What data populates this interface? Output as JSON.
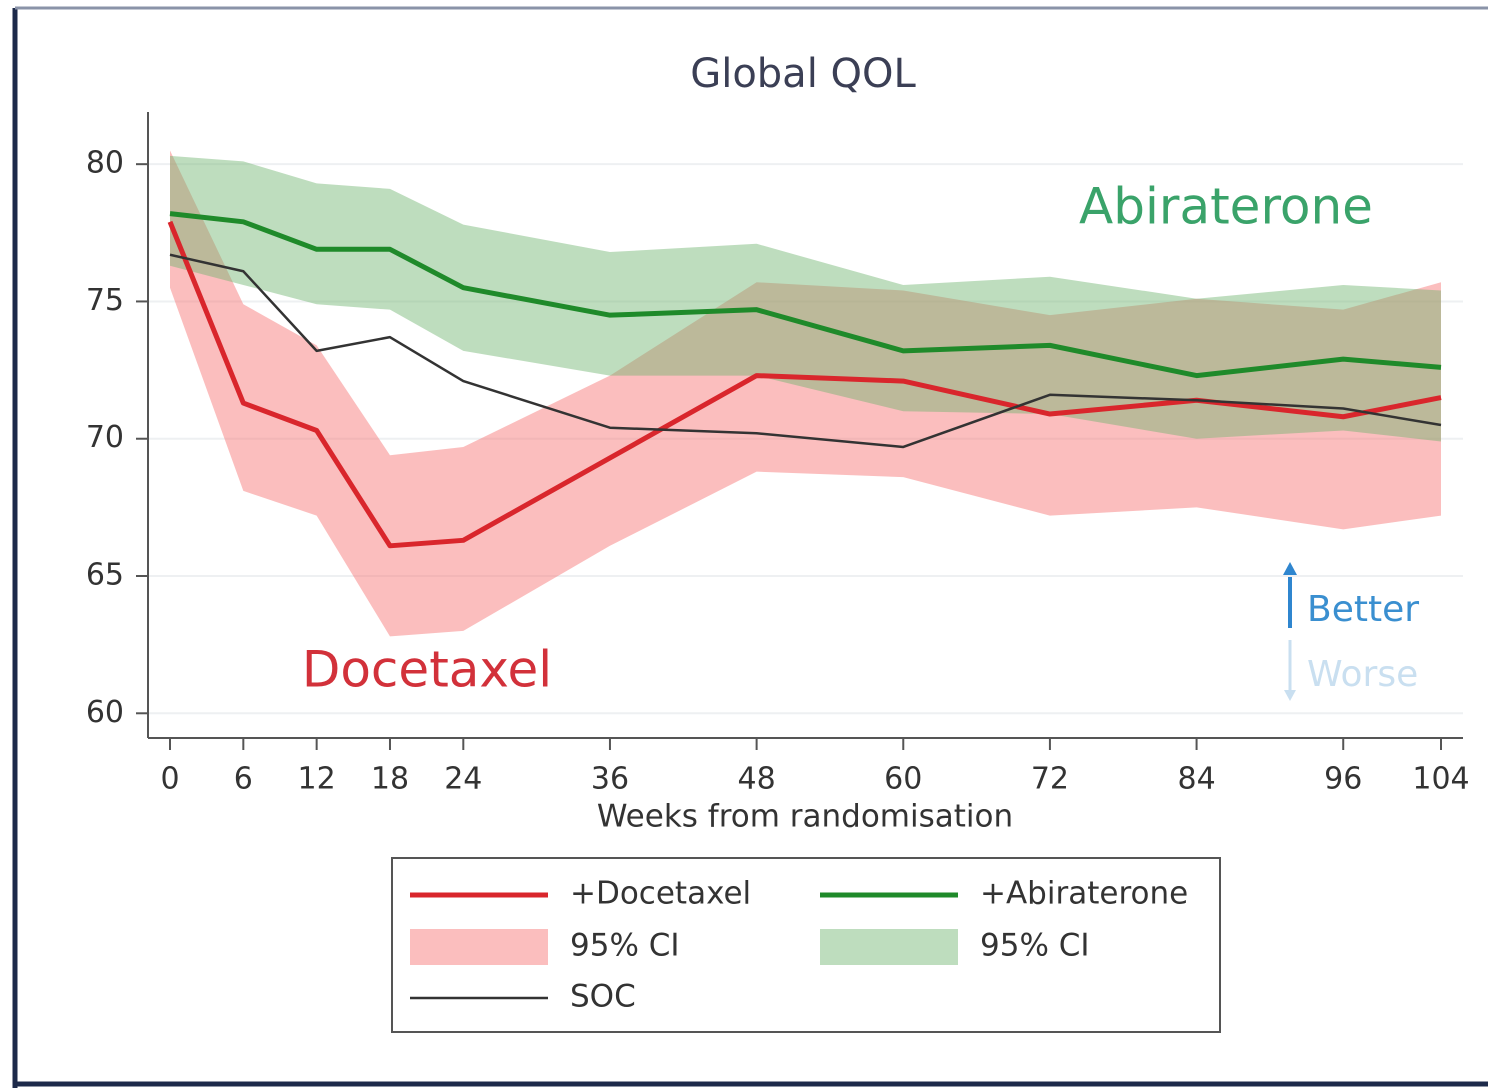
{
  "chart_data": {
    "type": "line",
    "title": "Global QOL",
    "x_label": "Weeks from randomisation",
    "x": [
      0,
      6,
      12,
      18,
      24,
      36,
      48,
      60,
      72,
      84,
      96,
      104
    ],
    "xlim": [
      -1.8,
      105.8
    ],
    "xticks": [
      0,
      6,
      12,
      18,
      24,
      36,
      48,
      60,
      72,
      84,
      96,
      104
    ],
    "ylim": [
      59.1,
      81.9
    ],
    "yticks": [
      60,
      65,
      70,
      75,
      80
    ],
    "grid": true,
    "series": [
      {
        "name": "+Docetaxel",
        "color": "#d9262c",
        "values": [
          77.9,
          71.3,
          70.3,
          66.1,
          66.3,
          69.3,
          72.3,
          72.1,
          70.9,
          71.4,
          70.8,
          71.5
        ],
        "ci": {
          "name": "95% CI",
          "color": "rgba(246,110,110,0.45)",
          "lower": [
            75.5,
            68.1,
            67.2,
            62.8,
            63.0,
            66.1,
            68.8,
            68.6,
            67.2,
            67.5,
            66.7,
            67.2
          ],
          "upper": [
            80.5,
            74.9,
            73.4,
            69.4,
            69.7,
            72.3,
            75.7,
            75.4,
            74.5,
            75.1,
            74.7,
            75.7
          ]
        }
      },
      {
        "name": "+Abiraterone",
        "color": "#1f8a2a",
        "values": [
          78.2,
          77.9,
          76.9,
          76.9,
          75.5,
          74.5,
          74.7,
          73.2,
          73.4,
          72.3,
          72.9,
          72.6
        ],
        "ci": {
          "name": "95% CI",
          "color": "rgba(110,180,110,0.45)",
          "lower": [
            76.3,
            75.6,
            74.9,
            74.7,
            73.2,
            72.3,
            72.3,
            71.0,
            70.9,
            70.0,
            70.3,
            69.9
          ],
          "upper": [
            80.3,
            80.1,
            79.3,
            79.1,
            77.8,
            76.8,
            77.1,
            75.6,
            75.9,
            75.1,
            75.6,
            75.4
          ]
        }
      },
      {
        "name": "SOC",
        "color": "#333333",
        "values": [
          76.7,
          76.1,
          73.2,
          73.7,
          72.1,
          70.4,
          70.2,
          69.7,
          71.6,
          71.4,
          71.1,
          70.5
        ]
      }
    ],
    "annotations": {
      "abiraterone": "Abiraterone",
      "docetaxel": "Docetaxel",
      "better": "Better",
      "worse": "Worse"
    }
  }
}
